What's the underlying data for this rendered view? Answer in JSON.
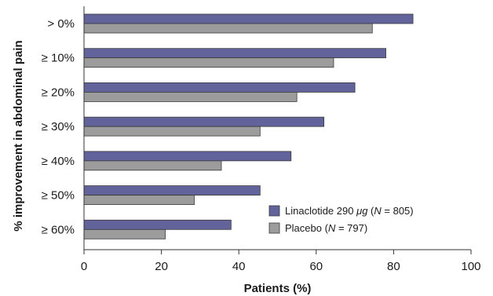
{
  "chart_data": {
    "type": "bar",
    "orientation": "horizontal",
    "categories": [
      "> 0%",
      "≥ 10%",
      "≥ 20%",
      "≥ 30%",
      "≥ 40%",
      "≥ 50%",
      "≥ 60%"
    ],
    "series": [
      {
        "name": "Linaclotide 290 μg (N = 805)",
        "values": [
          85,
          78,
          70,
          62,
          53.5,
          45.5,
          38
        ],
        "color": "#62639a"
      },
      {
        "name": "Placebo (N = 797)",
        "values": [
          74.5,
          64.5,
          55,
          45.5,
          35.5,
          28.5,
          21
        ],
        "color": "#9c9c9c"
      }
    ],
    "xlabel": "Patients (%)",
    "ylabel": "% improvement in abdominal pain",
    "xlim": [
      0,
      100
    ],
    "xticks": [
      0,
      20,
      40,
      60,
      80,
      100
    ],
    "grid": false,
    "legend_position": "bottom-right"
  },
  "legend": {
    "entries": [
      {
        "prefix": "Linaclotide 290 ",
        "unit": "μg",
        "open": " (",
        "n": "N",
        "rest": " = 805)"
      },
      {
        "prefix": "Placebo",
        "unit": "",
        "open": " (",
        "n": "N",
        "rest": " = 797)"
      }
    ]
  }
}
